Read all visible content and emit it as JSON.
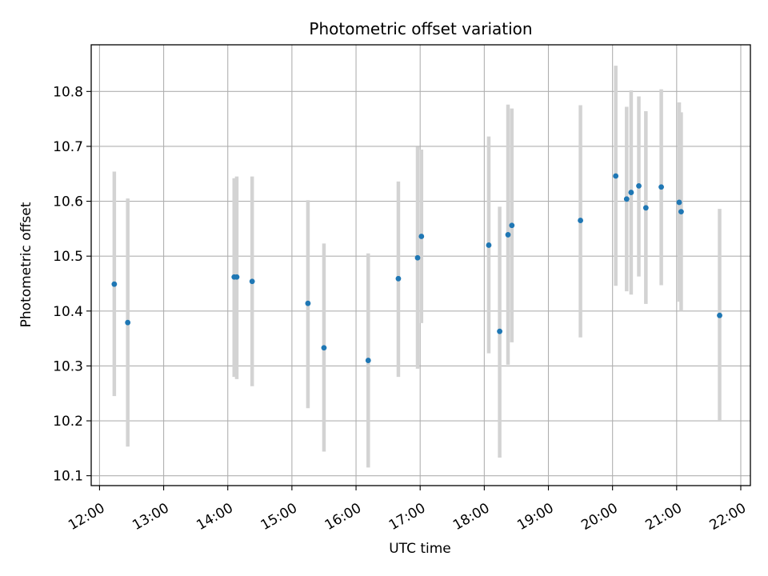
{
  "chart_data": {
    "type": "scatter",
    "title": "Photometric offset variation",
    "xlabel": "UTC time",
    "ylabel": "Photometric offset",
    "x_axis_kind": "time (hours, UTC)",
    "xlim": [
      11.87,
      22.15
    ],
    "ylim": [
      10.082,
      10.885
    ],
    "grid": true,
    "xticks": [
      {
        "value": 12,
        "label": "12:00"
      },
      {
        "value": 13,
        "label": "13:00"
      },
      {
        "value": 14,
        "label": "14:00"
      },
      {
        "value": 15,
        "label": "15:00"
      },
      {
        "value": 16,
        "label": "16:00"
      },
      {
        "value": 17,
        "label": "17:00"
      },
      {
        "value": 18,
        "label": "18:00"
      },
      {
        "value": 19,
        "label": "19:00"
      },
      {
        "value": 20,
        "label": "20:00"
      },
      {
        "value": 21,
        "label": "21:00"
      },
      {
        "value": 22,
        "label": "22:00"
      }
    ],
    "yticks": [
      {
        "value": 10.1,
        "label": "10.1"
      },
      {
        "value": 10.2,
        "label": "10.2"
      },
      {
        "value": 10.3,
        "label": "10.3"
      },
      {
        "value": 10.4,
        "label": "10.4"
      },
      {
        "value": 10.5,
        "label": "10.5"
      },
      {
        "value": 10.6,
        "label": "10.6"
      },
      {
        "value": 10.7,
        "label": "10.7"
      },
      {
        "value": 10.8,
        "label": "10.8"
      }
    ],
    "colors": {
      "point": "#1f77b4",
      "errorbar": "#d3d3d3",
      "grid": "#b0b0b0"
    },
    "points": [
      {
        "x": 12.23,
        "y": 10.449,
        "low": 10.245,
        "high": 10.654
      },
      {
        "x": 12.44,
        "y": 10.379,
        "low": 10.153,
        "high": 10.605
      },
      {
        "x": 14.1,
        "y": 10.462,
        "low": 10.28,
        "high": 10.642
      },
      {
        "x": 14.14,
        "y": 10.462,
        "low": 10.276,
        "high": 10.645
      },
      {
        "x": 14.38,
        "y": 10.454,
        "low": 10.263,
        "high": 10.645
      },
      {
        "x": 15.25,
        "y": 10.414,
        "low": 10.223,
        "high": 10.602
      },
      {
        "x": 15.5,
        "y": 10.333,
        "low": 10.144,
        "high": 10.523
      },
      {
        "x": 16.19,
        "y": 10.31,
        "low": 10.115,
        "high": 10.505
      },
      {
        "x": 16.66,
        "y": 10.459,
        "low": 10.28,
        "high": 10.636
      },
      {
        "x": 16.96,
        "y": 10.497,
        "low": 10.295,
        "high": 10.699
      },
      {
        "x": 17.02,
        "y": 10.536,
        "low": 10.378,
        "high": 10.694
      },
      {
        "x": 18.07,
        "y": 10.52,
        "low": 10.323,
        "high": 10.718
      },
      {
        "x": 18.24,
        "y": 10.363,
        "low": 10.133,
        "high": 10.59
      },
      {
        "x": 18.37,
        "y": 10.539,
        "low": 10.302,
        "high": 10.776
      },
      {
        "x": 18.43,
        "y": 10.556,
        "low": 10.343,
        "high": 10.769
      },
      {
        "x": 19.5,
        "y": 10.565,
        "low": 10.352,
        "high": 10.775
      },
      {
        "x": 20.05,
        "y": 10.646,
        "low": 10.446,
        "high": 10.847
      },
      {
        "x": 20.22,
        "y": 10.604,
        "low": 10.436,
        "high": 10.772
      },
      {
        "x": 20.29,
        "y": 10.616,
        "low": 10.43,
        "high": 10.802
      },
      {
        "x": 20.41,
        "y": 10.628,
        "low": 10.463,
        "high": 10.791
      },
      {
        "x": 20.52,
        "y": 10.588,
        "low": 10.413,
        "high": 10.764
      },
      {
        "x": 20.76,
        "y": 10.626,
        "low": 10.447,
        "high": 10.804
      },
      {
        "x": 21.04,
        "y": 10.598,
        "low": 10.417,
        "high": 10.78
      },
      {
        "x": 21.07,
        "y": 10.581,
        "low": 10.4,
        "high": 10.762
      },
      {
        "x": 21.67,
        "y": 10.392,
        "low": 10.2,
        "high": 10.586
      }
    ]
  }
}
